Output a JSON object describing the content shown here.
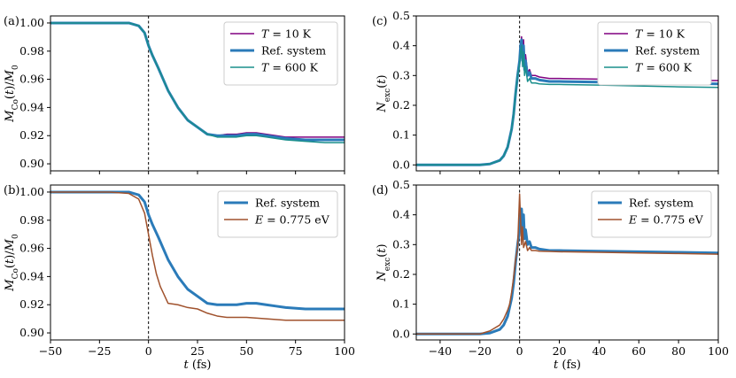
{
  "colors": {
    "t10": "#800080",
    "ref": "#2b7bb9",
    "t600": "#1a8f8c",
    "e775": "#a0522d"
  },
  "chart_data": [
    {
      "panel": "(a)",
      "type": "line",
      "xlabel": "",
      "ylabel": "M_Co(t)/M_0",
      "xlim": [
        -50,
        100
      ],
      "ylim": [
        0.895,
        1.005
      ],
      "xticks": [
        -50,
        -25,
        0,
        25,
        50,
        75,
        100
      ],
      "xtick_labels": [],
      "yticks": [
        0.9,
        0.92,
        0.94,
        0.96,
        0.98,
        1.0
      ],
      "ytick_labels": [
        "0.90",
        "0.92",
        "0.94",
        "0.96",
        "0.98",
        "1.00"
      ],
      "vline_x": 0,
      "legend": "top-right",
      "series": [
        {
          "name": "T = 10 K",
          "color": "t10",
          "width": 1.5,
          "x": [
            -50,
            -20,
            -10,
            -5,
            -2,
            0,
            2,
            5,
            10,
            15,
            20,
            25,
            30,
            35,
            40,
            45,
            50,
            55,
            60,
            65,
            70,
            80,
            90,
            100
          ],
          "y": [
            1.0,
            1.0,
            1.0,
            0.998,
            0.993,
            0.984,
            0.977,
            0.968,
            0.952,
            0.94,
            0.931,
            0.926,
            0.921,
            0.92,
            0.921,
            0.921,
            0.922,
            0.922,
            0.921,
            0.92,
            0.919,
            0.919,
            0.919,
            0.919
          ]
        },
        {
          "name": "Ref. system",
          "color": "ref",
          "width": 3,
          "x": [
            -50,
            -20,
            -10,
            -5,
            -2,
            0,
            2,
            5,
            10,
            15,
            20,
            25,
            30,
            35,
            40,
            45,
            50,
            55,
            60,
            65,
            70,
            80,
            90,
            100
          ],
          "y": [
            1.0,
            1.0,
            1.0,
            0.998,
            0.993,
            0.984,
            0.977,
            0.968,
            0.952,
            0.94,
            0.931,
            0.926,
            0.921,
            0.92,
            0.92,
            0.92,
            0.921,
            0.921,
            0.92,
            0.919,
            0.918,
            0.917,
            0.917,
            0.917
          ]
        },
        {
          "name": "T = 600 K",
          "color": "t600",
          "width": 1.5,
          "x": [
            -50,
            -20,
            -10,
            -5,
            -2,
            0,
            2,
            5,
            10,
            15,
            20,
            25,
            30,
            35,
            40,
            45,
            50,
            55,
            60,
            65,
            70,
            80,
            90,
            100
          ],
          "y": [
            1.0,
            1.0,
            1.0,
            0.998,
            0.993,
            0.984,
            0.977,
            0.968,
            0.952,
            0.94,
            0.931,
            0.926,
            0.921,
            0.919,
            0.919,
            0.919,
            0.92,
            0.92,
            0.919,
            0.918,
            0.917,
            0.916,
            0.915,
            0.915
          ]
        }
      ]
    },
    {
      "panel": "(b)",
      "type": "line",
      "xlabel": "t (fs)",
      "ylabel": "M_Co(t)/M_0",
      "xlim": [
        -50,
        100
      ],
      "ylim": [
        0.895,
        1.005
      ],
      "xticks": [
        -50,
        -25,
        0,
        25,
        50,
        75,
        100
      ],
      "xtick_labels": [
        "−50",
        "−25",
        "0",
        "25",
        "50",
        "75",
        "100"
      ],
      "yticks": [
        0.9,
        0.92,
        0.94,
        0.96,
        0.98,
        1.0
      ],
      "ytick_labels": [
        "0.90",
        "0.92",
        "0.94",
        "0.96",
        "0.98",
        "1.00"
      ],
      "vline_x": 0,
      "legend": "top-right",
      "series": [
        {
          "name": "Ref. system",
          "color": "ref",
          "width": 3,
          "x": [
            -50,
            -20,
            -10,
            -5,
            -2,
            0,
            2,
            5,
            10,
            15,
            20,
            25,
            30,
            35,
            40,
            45,
            50,
            55,
            60,
            65,
            70,
            80,
            90,
            100
          ],
          "y": [
            1.0,
            1.0,
            1.0,
            0.998,
            0.993,
            0.984,
            0.977,
            0.968,
            0.952,
            0.94,
            0.931,
            0.926,
            0.921,
            0.92,
            0.92,
            0.92,
            0.921,
            0.921,
            0.92,
            0.919,
            0.918,
            0.917,
            0.917,
            0.917
          ]
        },
        {
          "name": "E = 0.775 eV",
          "color": "e775",
          "width": 1.5,
          "x": [
            -50,
            -20,
            -10,
            -5,
            -2,
            0,
            2,
            4,
            6,
            8,
            10,
            15,
            20,
            25,
            30,
            35,
            40,
            50,
            60,
            70,
            80,
            90,
            100
          ],
          "y": [
            1.0,
            1.0,
            0.999,
            0.995,
            0.985,
            0.97,
            0.955,
            0.942,
            0.933,
            0.927,
            0.921,
            0.92,
            0.918,
            0.917,
            0.914,
            0.912,
            0.911,
            0.911,
            0.91,
            0.909,
            0.909,
            0.909,
            0.909
          ]
        }
      ]
    },
    {
      "panel": "(c)",
      "type": "line",
      "xlabel": "",
      "ylabel": "N_exc(t)",
      "xlim": [
        -52,
        100
      ],
      "ylim": [
        -0.02,
        0.5
      ],
      "xticks": [
        -40,
        -20,
        0,
        20,
        40,
        60,
        80,
        100
      ],
      "xtick_labels": [],
      "yticks": [
        0.0,
        0.1,
        0.2,
        0.3,
        0.4,
        0.5
      ],
      "ytick_labels": [
        "0.0",
        "0.1",
        "0.2",
        "0.3",
        "0.4",
        "0.5"
      ],
      "vline_x": 0,
      "legend": "top-right",
      "series": [
        {
          "name": "T = 10 K",
          "color": "t10",
          "width": 1.5,
          "x": [
            -52,
            -20,
            -15,
            -10,
            -8,
            -6,
            -5,
            -4,
            -3,
            -2,
            -1,
            0,
            0.5,
            1,
            1.5,
            2,
            2.5,
            3,
            4,
            5,
            6,
            8,
            10,
            15,
            20,
            40,
            60,
            80,
            100
          ],
          "y": [
            0.0,
            0.0,
            0.003,
            0.015,
            0.03,
            0.06,
            0.09,
            0.12,
            0.17,
            0.24,
            0.3,
            0.35,
            0.4,
            0.43,
            0.36,
            0.42,
            0.33,
            0.37,
            0.31,
            0.32,
            0.3,
            0.3,
            0.295,
            0.29,
            0.29,
            0.288,
            0.286,
            0.284,
            0.283
          ]
        },
        {
          "name": "Ref. system",
          "color": "ref",
          "width": 3,
          "x": [
            -52,
            -20,
            -15,
            -10,
            -8,
            -6,
            -5,
            -4,
            -3,
            -2,
            -1,
            0,
            0.5,
            1,
            1.5,
            2,
            2.5,
            3,
            4,
            5,
            6,
            8,
            10,
            15,
            20,
            40,
            60,
            80,
            100
          ],
          "y": [
            0.0,
            0.0,
            0.003,
            0.015,
            0.03,
            0.06,
            0.09,
            0.12,
            0.17,
            0.24,
            0.3,
            0.35,
            0.4,
            0.42,
            0.35,
            0.4,
            0.32,
            0.35,
            0.3,
            0.31,
            0.29,
            0.29,
            0.285,
            0.28,
            0.28,
            0.278,
            0.276,
            0.274,
            0.272
          ]
        },
        {
          "name": "T = 600 K",
          "color": "t600",
          "width": 1.5,
          "x": [
            -52,
            -20,
            -15,
            -10,
            -8,
            -6,
            -5,
            -4,
            -3,
            -2,
            -1,
            0,
            0.5,
            1,
            1.5,
            2,
            2.5,
            3,
            4,
            5,
            6,
            8,
            10,
            15,
            20,
            40,
            60,
            80,
            100
          ],
          "y": [
            0.0,
            0.0,
            0.003,
            0.015,
            0.03,
            0.06,
            0.09,
            0.12,
            0.17,
            0.24,
            0.3,
            0.34,
            0.38,
            0.4,
            0.33,
            0.38,
            0.3,
            0.33,
            0.28,
            0.29,
            0.275,
            0.275,
            0.272,
            0.27,
            0.27,
            0.268,
            0.265,
            0.262,
            0.26
          ]
        }
      ]
    },
    {
      "panel": "(d)",
      "type": "line",
      "xlabel": "t (fs)",
      "ylabel": "N_exc(t)",
      "xlim": [
        -52,
        100
      ],
      "ylim": [
        -0.02,
        0.5
      ],
      "xticks": [
        -40,
        -20,
        0,
        20,
        40,
        60,
        80,
        100
      ],
      "xtick_labels": [
        "−40",
        "−20",
        "0",
        "20",
        "40",
        "60",
        "80",
        "100"
      ],
      "yticks": [
        0.0,
        0.1,
        0.2,
        0.3,
        0.4,
        0.5
      ],
      "ytick_labels": [
        "0.0",
        "0.1",
        "0.2",
        "0.3",
        "0.4",
        "0.5"
      ],
      "vline_x": 0,
      "legend": "top-right",
      "series": [
        {
          "name": "Ref. system",
          "color": "ref",
          "width": 3,
          "x": [
            -52,
            -20,
            -15,
            -10,
            -8,
            -6,
            -5,
            -4,
            -3,
            -2,
            -1,
            0,
            0.5,
            1,
            1.5,
            2,
            2.5,
            3,
            4,
            5,
            6,
            8,
            10,
            15,
            20,
            40,
            60,
            80,
            100
          ],
          "y": [
            0.0,
            0.0,
            0.003,
            0.015,
            0.03,
            0.06,
            0.09,
            0.12,
            0.17,
            0.24,
            0.3,
            0.35,
            0.4,
            0.42,
            0.35,
            0.4,
            0.32,
            0.35,
            0.3,
            0.31,
            0.29,
            0.29,
            0.285,
            0.28,
            0.28,
            0.278,
            0.276,
            0.274,
            0.272
          ]
        },
        {
          "name": "E = 0.775 eV",
          "color": "e775",
          "width": 1.5,
          "x": [
            -52,
            -20,
            -15,
            -10,
            -8,
            -6,
            -5,
            -4,
            -3,
            -2,
            -1,
            0,
            0.5,
            1,
            1.5,
            2,
            3,
            4,
            5,
            6,
            8,
            10,
            15,
            20,
            40,
            60,
            80,
            100
          ],
          "y": [
            0.0,
            0.0,
            0.01,
            0.03,
            0.05,
            0.08,
            0.1,
            0.14,
            0.19,
            0.25,
            0.29,
            0.47,
            0.38,
            0.3,
            0.36,
            0.29,
            0.31,
            0.28,
            0.29,
            0.28,
            0.28,
            0.278,
            0.277,
            0.276,
            0.274,
            0.272,
            0.27,
            0.268
          ]
        }
      ]
    }
  ]
}
